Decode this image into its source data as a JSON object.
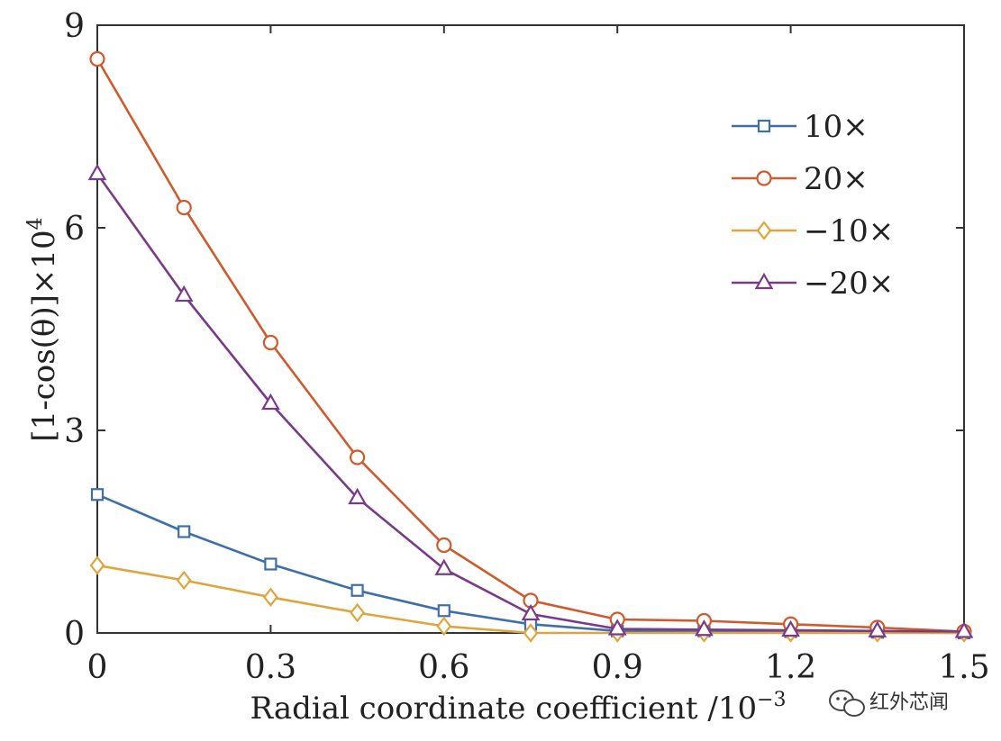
{
  "chart_data": {
    "type": "line",
    "xlabel": "Radial coordinate coefficient /10",
    "xlabel_exponent": "−3",
    "ylabel": "[1-cos(θ)]×10",
    "ylabel_exponent": "4",
    "xlim": [
      0,
      1.5
    ],
    "ylim": [
      0,
      9
    ],
    "xticks": [
      0,
      0.3,
      0.6,
      0.9,
      1.2,
      1.5
    ],
    "xtick_labels": [
      "0",
      "0.3",
      "0.6",
      "0.9",
      "1.2",
      "1.5"
    ],
    "yticks": [
      0,
      3,
      6,
      9
    ],
    "ytick_labels": [
      "0",
      "3",
      "6",
      "9"
    ],
    "grid": false,
    "legend_position": "top-right",
    "x": [
      0,
      0.15,
      0.3,
      0.45,
      0.6,
      0.75,
      0.9,
      1.05,
      1.2,
      1.35,
      1.5
    ],
    "series": [
      {
        "name": "10×",
        "color": "#3f6fa8",
        "marker": "square",
        "values": [
          2.05,
          1.5,
          1.02,
          0.63,
          0.33,
          0.13,
          0.03,
          0.03,
          0.02,
          0.01,
          0.0
        ]
      },
      {
        "name": "20×",
        "color": "#d05a2c",
        "marker": "circle",
        "values": [
          8.5,
          6.3,
          4.3,
          2.6,
          1.3,
          0.48,
          0.2,
          0.18,
          0.13,
          0.08,
          0.02
        ]
      },
      {
        "name": "−10×",
        "color": "#e0a43a",
        "marker": "diamond",
        "values": [
          1.0,
          0.78,
          0.53,
          0.3,
          0.1,
          0.0,
          0.0,
          0.0,
          0.0,
          0.0,
          0.0
        ]
      },
      {
        "name": "−20×",
        "color": "#7a3a8a",
        "marker": "triangle",
        "values": [
          6.8,
          5.0,
          3.4,
          2.0,
          0.95,
          0.28,
          0.06,
          0.05,
          0.04,
          0.03,
          0.02
        ]
      }
    ]
  },
  "watermark": {
    "text": "红外芯闻",
    "icon": "wechat-icon"
  }
}
